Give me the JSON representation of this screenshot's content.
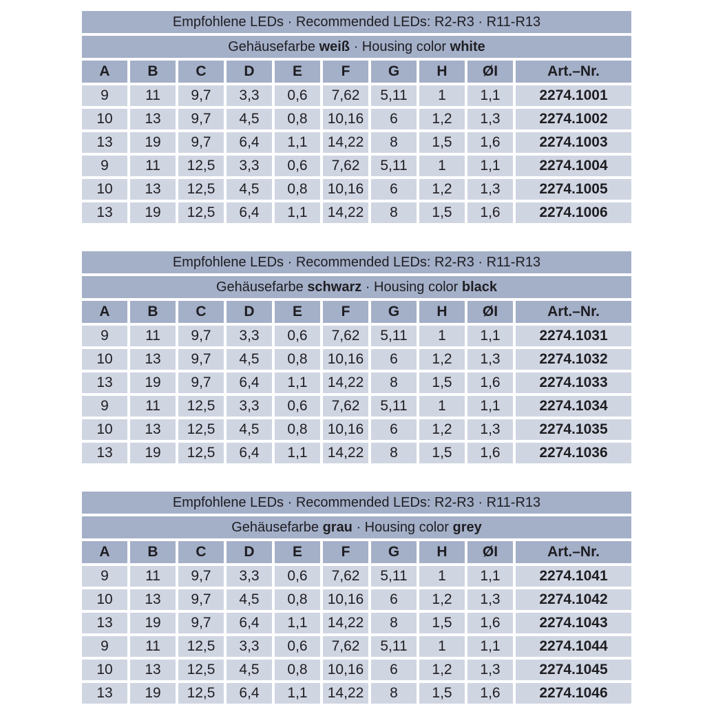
{
  "colors": {
    "header_bg": "#a4afc8",
    "row_bg": "#d0d5e2",
    "gap": "#ffffff",
    "text": "#1e1e22",
    "page_bg": "#ffffff"
  },
  "columns": [
    "A",
    "B",
    "C",
    "D",
    "E",
    "F",
    "G",
    "H",
    "ØI",
    "Art.–Nr."
  ],
  "tables": [
    {
      "title": "Empfohlene LEDs · Recommended LEDs: R2-R3 · R11-R13",
      "subtitle": {
        "prefix": "Gehäusefarbe ",
        "color_de": "weiß",
        "middle": " · Housing color ",
        "color_en": "white"
      },
      "rows": [
        [
          "9",
          "11",
          "9,7",
          "3,3",
          "0,6",
          "7,62",
          "5,11",
          "1",
          "1,1",
          "2274.1001"
        ],
        [
          "10",
          "13",
          "9,7",
          "4,5",
          "0,8",
          "10,16",
          "6",
          "1,2",
          "1,3",
          "2274.1002"
        ],
        [
          "13",
          "19",
          "9,7",
          "6,4",
          "1,1",
          "14,22",
          "8",
          "1,5",
          "1,6",
          "2274.1003"
        ],
        [
          "9",
          "11",
          "12,5",
          "3,3",
          "0,6",
          "7,62",
          "5,11",
          "1",
          "1,1",
          "2274.1004"
        ],
        [
          "10",
          "13",
          "12,5",
          "4,5",
          "0,8",
          "10,16",
          "6",
          "1,2",
          "1,3",
          "2274.1005"
        ],
        [
          "13",
          "19",
          "12,5",
          "6,4",
          "1,1",
          "14,22",
          "8",
          "1,5",
          "1,6",
          "2274.1006"
        ]
      ]
    },
    {
      "title": "Empfohlene LEDs · Recommended LEDs: R2-R3 · R11-R13",
      "subtitle": {
        "prefix": "Gehäusefarbe ",
        "color_de": "schwarz",
        "middle": " · Housing color ",
        "color_en": "black"
      },
      "rows": [
        [
          "9",
          "11",
          "9,7",
          "3,3",
          "0,6",
          "7,62",
          "5,11",
          "1",
          "1,1",
          "2274.1031"
        ],
        [
          "10",
          "13",
          "9,7",
          "4,5",
          "0,8",
          "10,16",
          "6",
          "1,2",
          "1,3",
          "2274.1032"
        ],
        [
          "13",
          "19",
          "9,7",
          "6,4",
          "1,1",
          "14,22",
          "8",
          "1,5",
          "1,6",
          "2274.1033"
        ],
        [
          "9",
          "11",
          "12,5",
          "3,3",
          "0,6",
          "7,62",
          "5,11",
          "1",
          "1,1",
          "2274.1034"
        ],
        [
          "10",
          "13",
          "12,5",
          "4,5",
          "0,8",
          "10,16",
          "6",
          "1,2",
          "1,3",
          "2274.1035"
        ],
        [
          "13",
          "19",
          "12,5",
          "6,4",
          "1,1",
          "14,22",
          "8",
          "1,5",
          "1,6",
          "2274.1036"
        ]
      ]
    },
    {
      "title": "Empfohlene LEDs · Recommended LEDs: R2-R3 · R11-R13",
      "subtitle": {
        "prefix": "Gehäusefarbe ",
        "color_de": "grau",
        "middle": " · Housing color ",
        "color_en": "grey"
      },
      "rows": [
        [
          "9",
          "11",
          "9,7",
          "3,3",
          "0,6",
          "7,62",
          "5,11",
          "1",
          "1,1",
          "2274.1041"
        ],
        [
          "10",
          "13",
          "9,7",
          "4,5",
          "0,8",
          "10,16",
          "6",
          "1,2",
          "1,3",
          "2274.1042"
        ],
        [
          "13",
          "19",
          "9,7",
          "6,4",
          "1,1",
          "14,22",
          "8",
          "1,5",
          "1,6",
          "2274.1043"
        ],
        [
          "9",
          "11",
          "12,5",
          "3,3",
          "0,6",
          "7,62",
          "5,11",
          "1",
          "1,1",
          "2274.1044"
        ],
        [
          "10",
          "13",
          "12,5",
          "4,5",
          "0,8",
          "10,16",
          "6",
          "1,2",
          "1,3",
          "2274.1045"
        ],
        [
          "13",
          "19",
          "12,5",
          "6,4",
          "1,1",
          "14,22",
          "8",
          "1,5",
          "1,6",
          "2274.1046"
        ]
      ]
    }
  ]
}
